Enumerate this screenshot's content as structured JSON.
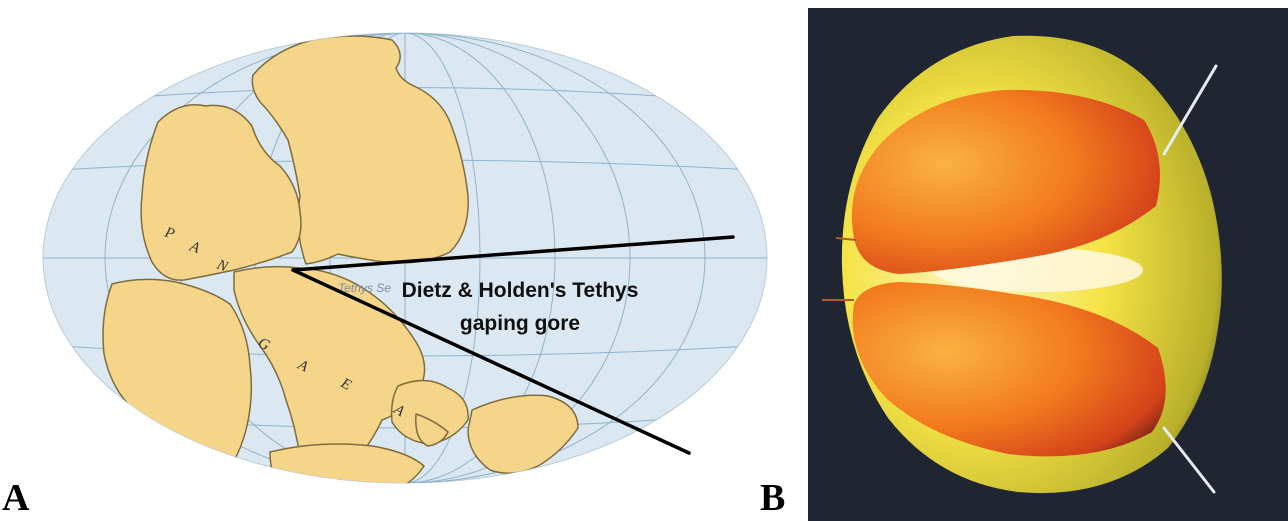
{
  "panel_a": {
    "letter": "A",
    "map_letters": [
      "P",
      "A",
      "N",
      "G",
      "A",
      "E",
      "A"
    ],
    "sea_label": "Tethys Se",
    "caption_line1": "Dietz & Holden's Tethys",
    "caption_line2": "gaping gore",
    "colors": {
      "ocean": "#dbe8f1",
      "grid": "#8fb3cc",
      "land": "#f4d58a",
      "coast": "#7f6c3c",
      "gore_lines": "#000000"
    }
  },
  "panel_b": {
    "letter": "B",
    "colors": {
      "background": "#1f2632",
      "rind": "#f4e53a",
      "peel": "#f07a1d",
      "pins": "#e6ecf0"
    }
  }
}
